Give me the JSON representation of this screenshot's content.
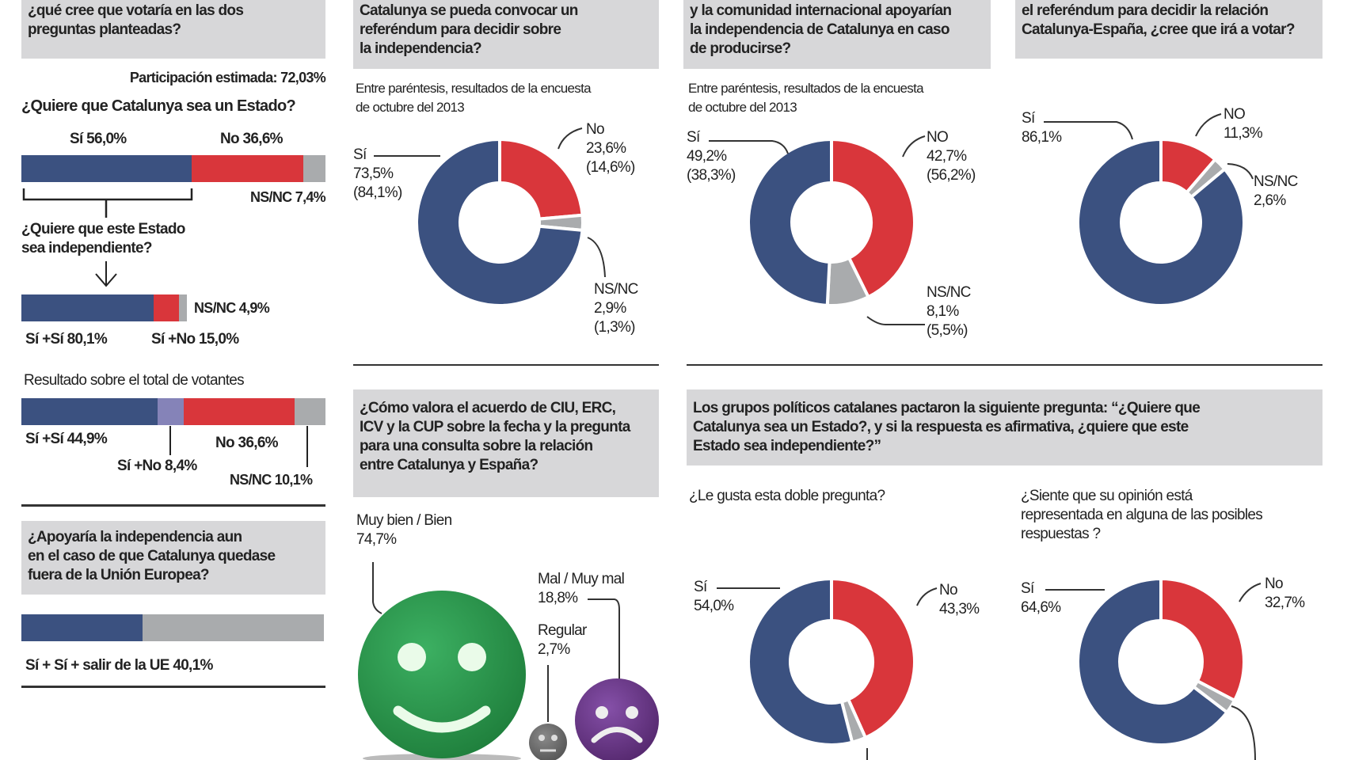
{
  "colors": {
    "si": "#3b5180",
    "no": "#d9363b",
    "nsnc": "#a9abad",
    "si_no": "#8583b8",
    "box": "#d7d7d9",
    "smile_good": "#2b9a50",
    "smile_bad": "#6b3a8c",
    "smile_regular": "#6d6d6d"
  },
  "col1": {
    "question": "¿qué cree que votaría en las dos\npreguntas planteadas?",
    "participation": "Participación estimada: 72,03%",
    "q_state": "¿Quiere que Catalunya sea un Estado?",
    "state_si": "Sí  56,0%",
    "state_no": "No  36,6%",
    "state_nsnc": "NS/NC 7,4%",
    "q_indep": "¿Quiere que este Estado\nsea independiente?",
    "indep_nsnc": "NS/NC 4,9%",
    "indep_si": "Sí +Sí  80,1%",
    "indep_no": "Sí +No 15,0%",
    "total_title": "Resultado sobre el total de votantes",
    "total_si_si": "Sí +Sí  44,9%",
    "total_si_no": "Sí +No 8,4%",
    "total_no": "No 36,6%",
    "total_nsnc": "NS/NC 10,1%",
    "eu_question": "¿Apoyaría la independencia aun\nen el caso de que Catalunya quedase\nfuera de la Unión Europea?",
    "eu_label": "Sí + Sí + salir de la UE  40,1%"
  },
  "col2": {
    "question": "Catalunya se pueda convocar un\nreferéndum para decidir sobre\nla independencia?",
    "note": "Entre paréntesis, resultados de la encuesta\nde octubre del 2013",
    "si_label": "Sí\n73,5%\n(84,1%)",
    "no_label": "No\n23,6%\n(14,6%)",
    "nsnc_label": "NS/NC\n2,9%\n(1,3%)"
  },
  "col3": {
    "question": "y la comunidad internacional apoyarían\nla independencia de Catalunya en caso\nde producirse?",
    "note": "Entre paréntesis, resultados de la encuesta\nde octubre del 2013",
    "si_label": "Sí\n49,2%\n(38,3%)",
    "no_label": "NO\n42,7%\n(56,2%)",
    "nsnc_label": "NS/NC\n8,1%\n(5,5%)"
  },
  "col4": {
    "question": "el referéndum para decidir la relación\nCatalunya-España, ¿cree que irá a votar?",
    "si_label": "Sí\n86,1%",
    "no_label": "NO\n11,3%",
    "nsnc_label": "NS/NC\n2,6%"
  },
  "agreement": {
    "question": "¿Cómo valora el  acuerdo de CIU, ERC,\nICV y la CUP sobre la fecha y la pregunta\npara una consulta sobre la relación\nentre Catalunya y España?",
    "good_label": "Muy bien / Bien\n74,7%",
    "bad_label": "Mal / Muy mal\n18,8%",
    "regular_label": "Regular\n2,7%"
  },
  "double": {
    "question": "Los grupos políticos catalanes pactaron la siguiente pregunta: “¿Quiere que\nCatalunya sea un Estado?, y si la respuesta es afirmativa, ¿quiere que este\nEstado sea independiente?”",
    "q_like": "¿Le gusta esta doble pregunta?",
    "like_si": "Sí\n54,0%",
    "like_no": "No\n43,3%",
    "q_repr": "¿Siente que su opinión está\nrepresentada en alguna de las posibles\nrespuestas ?",
    "repr_si": "Sí\n64,6%",
    "repr_no": "No\n32,7%"
  },
  "chart_data": [
    {
      "type": "bar",
      "stacked": true,
      "title": "¿Quiere que Catalunya sea un Estado?",
      "categories": [
        "Sí",
        "No",
        "NS/NC"
      ],
      "values": [
        56.0,
        36.6,
        7.4
      ]
    },
    {
      "type": "bar",
      "stacked": true,
      "title": "¿Quiere que este Estado sea independiente?",
      "categories": [
        "Sí +Sí",
        "Sí +No",
        "NS/NC"
      ],
      "values": [
        80.1,
        15.0,
        4.9
      ]
    },
    {
      "type": "bar",
      "stacked": true,
      "title": "Resultado sobre el total de votantes",
      "categories": [
        "Sí +Sí",
        "Sí +No",
        "No",
        "NS/NC"
      ],
      "values": [
        44.9,
        8.4,
        36.6,
        10.1
      ]
    },
    {
      "type": "bar",
      "stacked": true,
      "categories": [
        "Sí + Sí + salir de la UE"
      ],
      "values": [
        40.1
      ]
    },
    {
      "type": "pie",
      "donut": true,
      "categories": [
        "No",
        "NS/NC",
        "Sí"
      ],
      "values": [
        23.6,
        2.9,
        73.5
      ],
      "previous_oct_2013": [
        14.6,
        1.3,
        84.1
      ]
    },
    {
      "type": "pie",
      "donut": true,
      "categories": [
        "No",
        "NS/NC",
        "Sí"
      ],
      "values": [
        42.7,
        8.1,
        49.2
      ],
      "previous_oct_2013": [
        56.2,
        5.5,
        38.3
      ]
    },
    {
      "type": "pie",
      "donut": true,
      "categories": [
        "No",
        "NS/NC",
        "Sí"
      ],
      "values": [
        11.3,
        2.6,
        86.1
      ]
    },
    {
      "type": "bubble",
      "categories": [
        "Muy bien / Bien",
        "Regular",
        "Mal / Muy mal"
      ],
      "values": [
        74.7,
        2.7,
        18.8
      ]
    },
    {
      "type": "pie",
      "donut": true,
      "title": "¿Le gusta esta doble pregunta?",
      "categories": [
        "No",
        "Sí"
      ],
      "values": [
        43.3,
        54.0
      ]
    },
    {
      "type": "pie",
      "donut": true,
      "title": "¿Siente que su opinión está representada en alguna de las posibles respuestas ?",
      "categories": [
        "No",
        "Sí"
      ],
      "values": [
        32.7,
        64.6
      ]
    }
  ]
}
